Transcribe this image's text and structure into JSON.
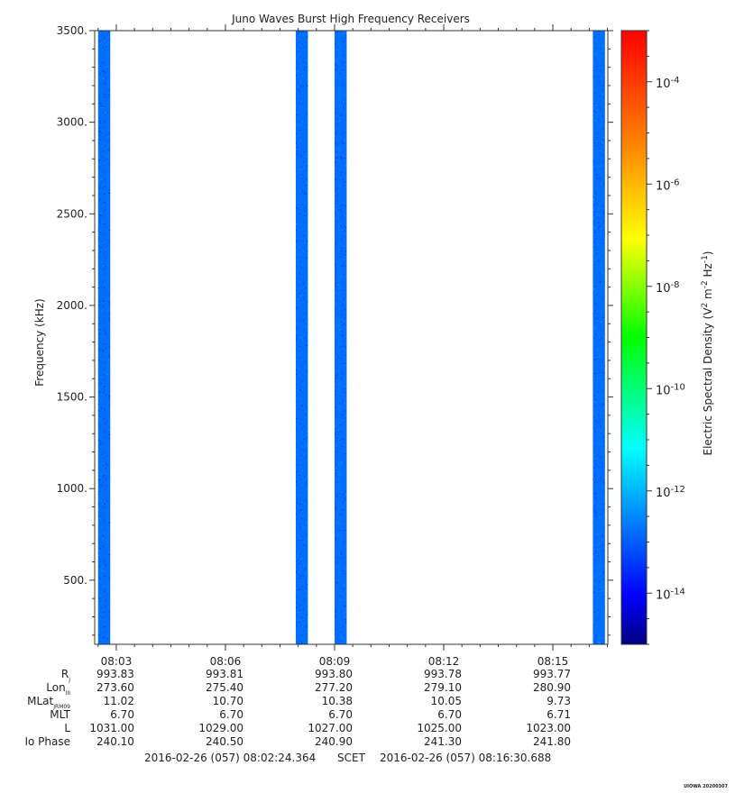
{
  "chart_data": {
    "type": "heatmap",
    "title": "Juno Waves Burst High Frequency Receivers",
    "ylabel": "Frequency (kHz)",
    "ylim": [
      150,
      3500
    ],
    "yticks": [
      "500.",
      "1000.",
      "1500.",
      "2000.",
      "2500.",
      "3000.",
      "3500."
    ],
    "ytick_values": [
      500,
      1000,
      1500,
      2000,
      2500,
      3000,
      3500
    ],
    "time_range": [
      "08:02:24.364",
      "08:16:30.688"
    ],
    "xticks": [
      "08:03",
      "08:06",
      "08:09",
      "08:12",
      "08:15"
    ],
    "xtick_values": [
      "08:03",
      "08:06",
      "08:09",
      "08:12",
      "08:15"
    ],
    "data_bursts": [
      {
        "start": "08:02:30",
        "end": "08:02:50",
        "level_exp": -11.8
      },
      {
        "start": "08:07:56",
        "end": "08:08:16",
        "level_exp": -11.8
      },
      {
        "start": "08:09:00",
        "end": "08:09:20",
        "level_exp": -11.8
      },
      {
        "start": "08:16:06",
        "end": "08:16:26",
        "level_exp": -11.8
      }
    ],
    "colorbar": {
      "label": "Electric Spectral Density (V",
      "label_sup1": "2",
      "label_mid": " m",
      "label_sup2": "-2",
      "label_mid2": " Hz",
      "label_sup3": "-1",
      "label_end": ")",
      "scale": "log",
      "range_exp": [
        -15,
        -3
      ],
      "ticks": [
        {
          "base": "10",
          "exp": "-4"
        },
        {
          "base": "10",
          "exp": "-6"
        },
        {
          "base": "10",
          "exp": "-8"
        },
        {
          "base": "10",
          "exp": "-10"
        },
        {
          "base": "10",
          "exp": "-12"
        },
        {
          "base": "10",
          "exp": "-14"
        }
      ],
      "tick_exps": [
        -4,
        -6,
        -8,
        -10,
        -12,
        -14
      ],
      "colors": [
        "#000080",
        "#0000ff",
        "#0080ff",
        "#00ffff",
        "#00ff00",
        "#ffff00",
        "#ff8000",
        "#ff0000"
      ]
    },
    "ephemeris": {
      "row_labels": [
        {
          "main": "R",
          "sub": "J"
        },
        {
          "main": "Lon",
          "sub": "III"
        },
        {
          "main": "MLat",
          "sub": "JRM09"
        },
        {
          "main": "MLT",
          "sub": ""
        },
        {
          "main": "L",
          "sub": ""
        },
        {
          "main": "Io Phase",
          "sub": ""
        }
      ],
      "columns": [
        [
          "993.83",
          "273.60",
          "11.02",
          "6.70",
          "1031.00",
          "240.10"
        ],
        [
          "993.81",
          "275.40",
          "10.70",
          "6.70",
          "1029.00",
          "240.50"
        ],
        [
          "993.80",
          "277.20",
          "10.38",
          "6.70",
          "1027.00",
          "240.90"
        ],
        [
          "993.78",
          "279.10",
          "10.05",
          "6.70",
          "1025.00",
          "241.30"
        ],
        [
          "993.77",
          "280.90",
          "9.73",
          "6.71",
          "1023.00",
          "241.80"
        ]
      ]
    },
    "footer": {
      "start": "2016-02-26 (057) 08:02:24.364",
      "mid": "SCET",
      "end": "2016-02-26 (057) 08:16:30.688"
    },
    "tag": "UIOWA 20200307"
  }
}
